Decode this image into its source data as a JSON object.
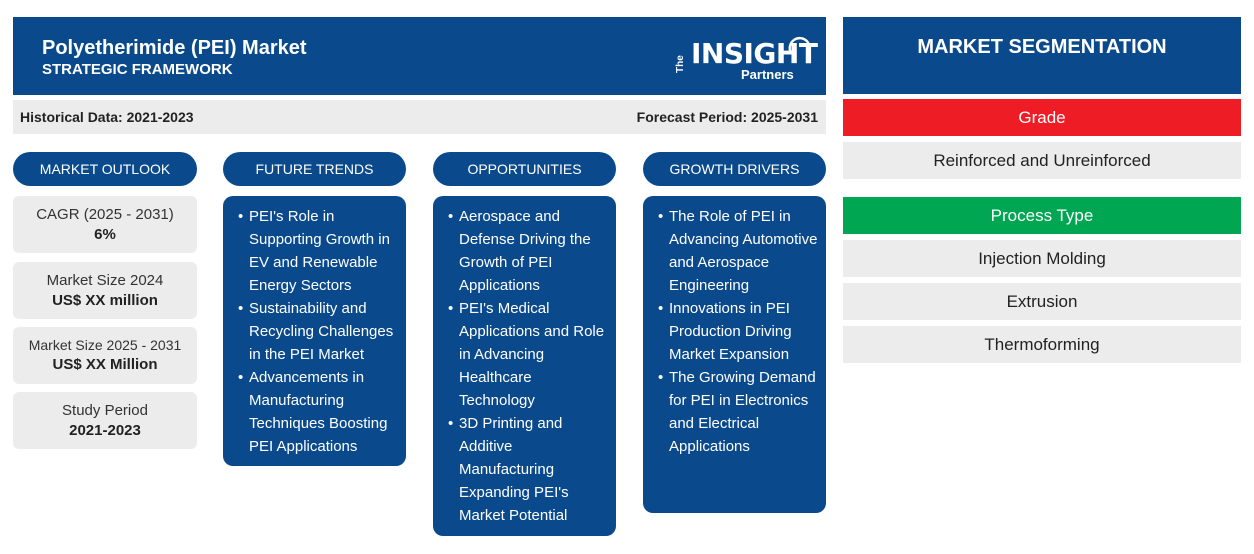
{
  "header": {
    "title": "Polyetherimide (PEI) Market",
    "subtitle": "STRATEGIC FRAMEWORK",
    "logo": {
      "the": "The",
      "insight": "INSIGHT",
      "partners": "Partners"
    }
  },
  "periods": {
    "historical": "Historical Data: 2021-2023",
    "forecast": "Forecast Period: 2025-2031"
  },
  "columns": {
    "outlook": "MARKET OUTLOOK",
    "trends": "FUTURE TRENDS",
    "opportunities": "OPPORTUNITIES",
    "drivers": "GROWTH DRIVERS"
  },
  "outlook": [
    {
      "label": "CAGR (2025 - 2031)",
      "value": "6%"
    },
    {
      "label": "Market Size 2024",
      "value": "US$ XX million"
    },
    {
      "label": "Market Size 2025 - 2031",
      "value": "US$ XX Million"
    },
    {
      "label": "Study Period",
      "value": "2021-2023"
    }
  ],
  "trends": [
    "PEI's Role in Supporting Growth in EV and Renewable Energy Sectors",
    "Sustainability and Recycling Challenges in the PEI Market",
    "Advancements in Manufacturing Techniques Boosting PEI Applications"
  ],
  "opportunities": [
    "Aerospace and Defense Driving the Growth of PEI Applications",
    "PEI's Medical Applications and Role in Advancing Healthcare Technology",
    "3D Printing and Additive Manufacturing Expanding PEI's Market Potential"
  ],
  "drivers": [
    "The Role of PEI in Advancing Automotive and Aerospace Engineering",
    "Innovations in PEI Production Driving Market Expansion",
    "The Growing Demand for PEI in Electronics and Electrical Applications"
  ],
  "segmentation": {
    "title": "MARKET SEGMENTATION",
    "grade": {
      "label": "Grade",
      "color": "#ee1c25",
      "items": [
        "Reinforced and Unreinforced"
      ]
    },
    "process": {
      "label": "Process Type",
      "color": "#00a651",
      "items": [
        "Injection Molding",
        "Extrusion",
        "Thermoforming"
      ]
    }
  },
  "colors": {
    "primary": "#0a4a8c",
    "panel": "#ececec"
  }
}
